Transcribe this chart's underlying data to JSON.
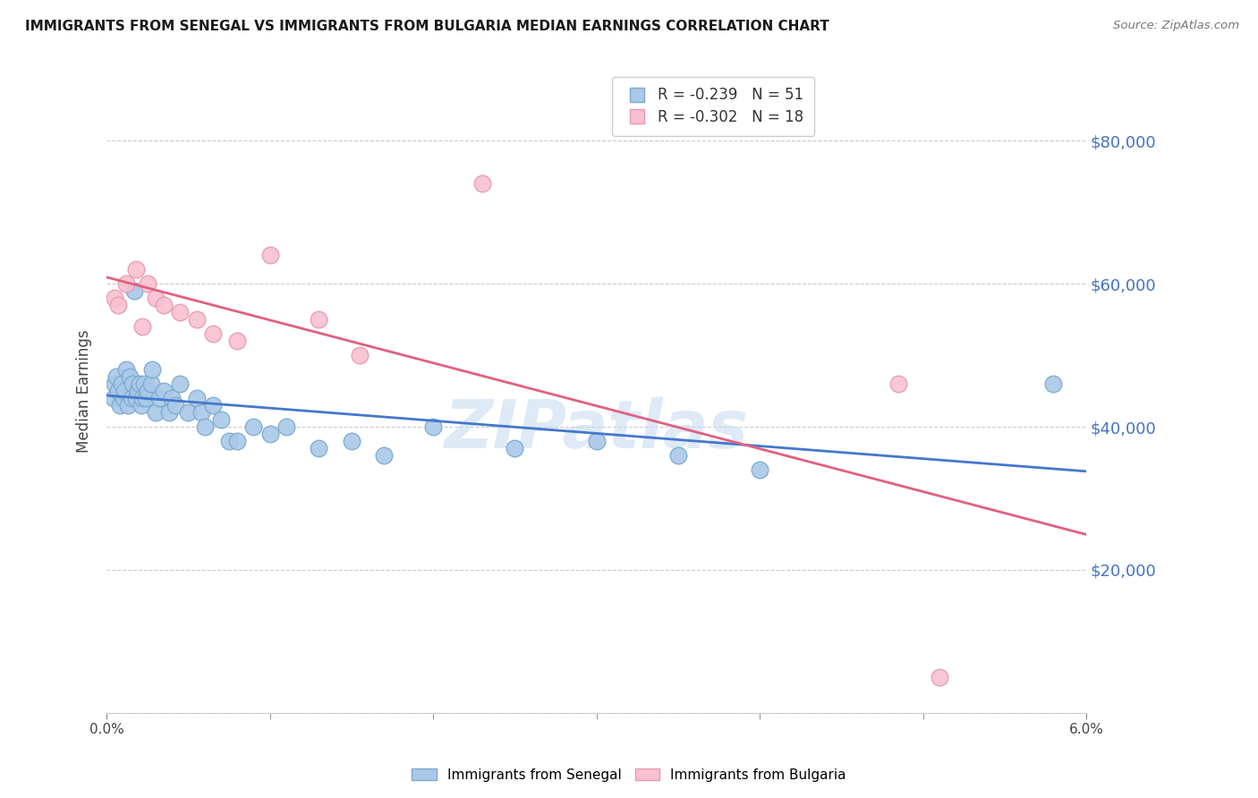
{
  "title": "IMMIGRANTS FROM SENEGAL VS IMMIGRANTS FROM BULGARIA MEDIAN EARNINGS CORRELATION CHART",
  "source": "Source: ZipAtlas.com",
  "ylabel": "Median Earnings",
  "yticks": [
    0,
    20000,
    40000,
    60000,
    80000
  ],
  "ytick_labels": [
    "",
    "$20,000",
    "$40,000",
    "$60,000",
    "$80,000"
  ],
  "xmin": 0.0,
  "xmax": 6.0,
  "ymin": 0,
  "ymax": 90000,
  "watermark": "ZIPatlas",
  "senegal_color": "#aac8e8",
  "senegal_edge": "#7aaad0",
  "bulgaria_color": "#f8c0d0",
  "bulgaria_edge": "#e898b0",
  "trend_senegal_color": "#4477cc",
  "trend_bulgaria_color": "#e06080",
  "senegal_R": -0.239,
  "senegal_N": 51,
  "bulgaria_R": -0.302,
  "bulgaria_N": 18,
  "legend_label_senegal": "Immigrants from Senegal",
  "legend_label_bulgaria": "Immigrants from Bulgaria",
  "senegal_x": [
    0.04,
    0.05,
    0.06,
    0.07,
    0.08,
    0.09,
    0.1,
    0.11,
    0.12,
    0.13,
    0.14,
    0.15,
    0.16,
    0.17,
    0.18,
    0.19,
    0.2,
    0.21,
    0.22,
    0.23,
    0.24,
    0.25,
    0.27,
    0.28,
    0.3,
    0.32,
    0.35,
    0.38,
    0.4,
    0.42,
    0.45,
    0.5,
    0.55,
    0.58,
    0.6,
    0.65,
    0.7,
    0.75,
    0.8,
    0.9,
    1.0,
    1.1,
    1.3,
    1.5,
    1.7,
    2.0,
    2.5,
    3.0,
    3.5,
    4.0,
    5.8
  ],
  "senegal_y": [
    44000,
    46000,
    47000,
    45000,
    43000,
    46000,
    44000,
    45000,
    48000,
    43000,
    47000,
    44000,
    46000,
    59000,
    44000,
    45000,
    46000,
    43000,
    44000,
    46000,
    44000,
    45000,
    46000,
    48000,
    42000,
    44000,
    45000,
    42000,
    44000,
    43000,
    46000,
    42000,
    44000,
    42000,
    40000,
    43000,
    41000,
    38000,
    38000,
    40000,
    39000,
    40000,
    37000,
    38000,
    36000,
    40000,
    37000,
    38000,
    36000,
    34000,
    46000
  ],
  "bulgaria_x": [
    0.05,
    0.07,
    0.12,
    0.18,
    0.22,
    0.25,
    0.3,
    0.35,
    0.45,
    0.55,
    0.65,
    0.8,
    1.0,
    1.3,
    1.55,
    2.3,
    4.85,
    5.1
  ],
  "bulgaria_y": [
    58000,
    57000,
    60000,
    62000,
    54000,
    60000,
    58000,
    57000,
    56000,
    55000,
    53000,
    52000,
    64000,
    55000,
    50000,
    74000,
    46000,
    5000
  ]
}
